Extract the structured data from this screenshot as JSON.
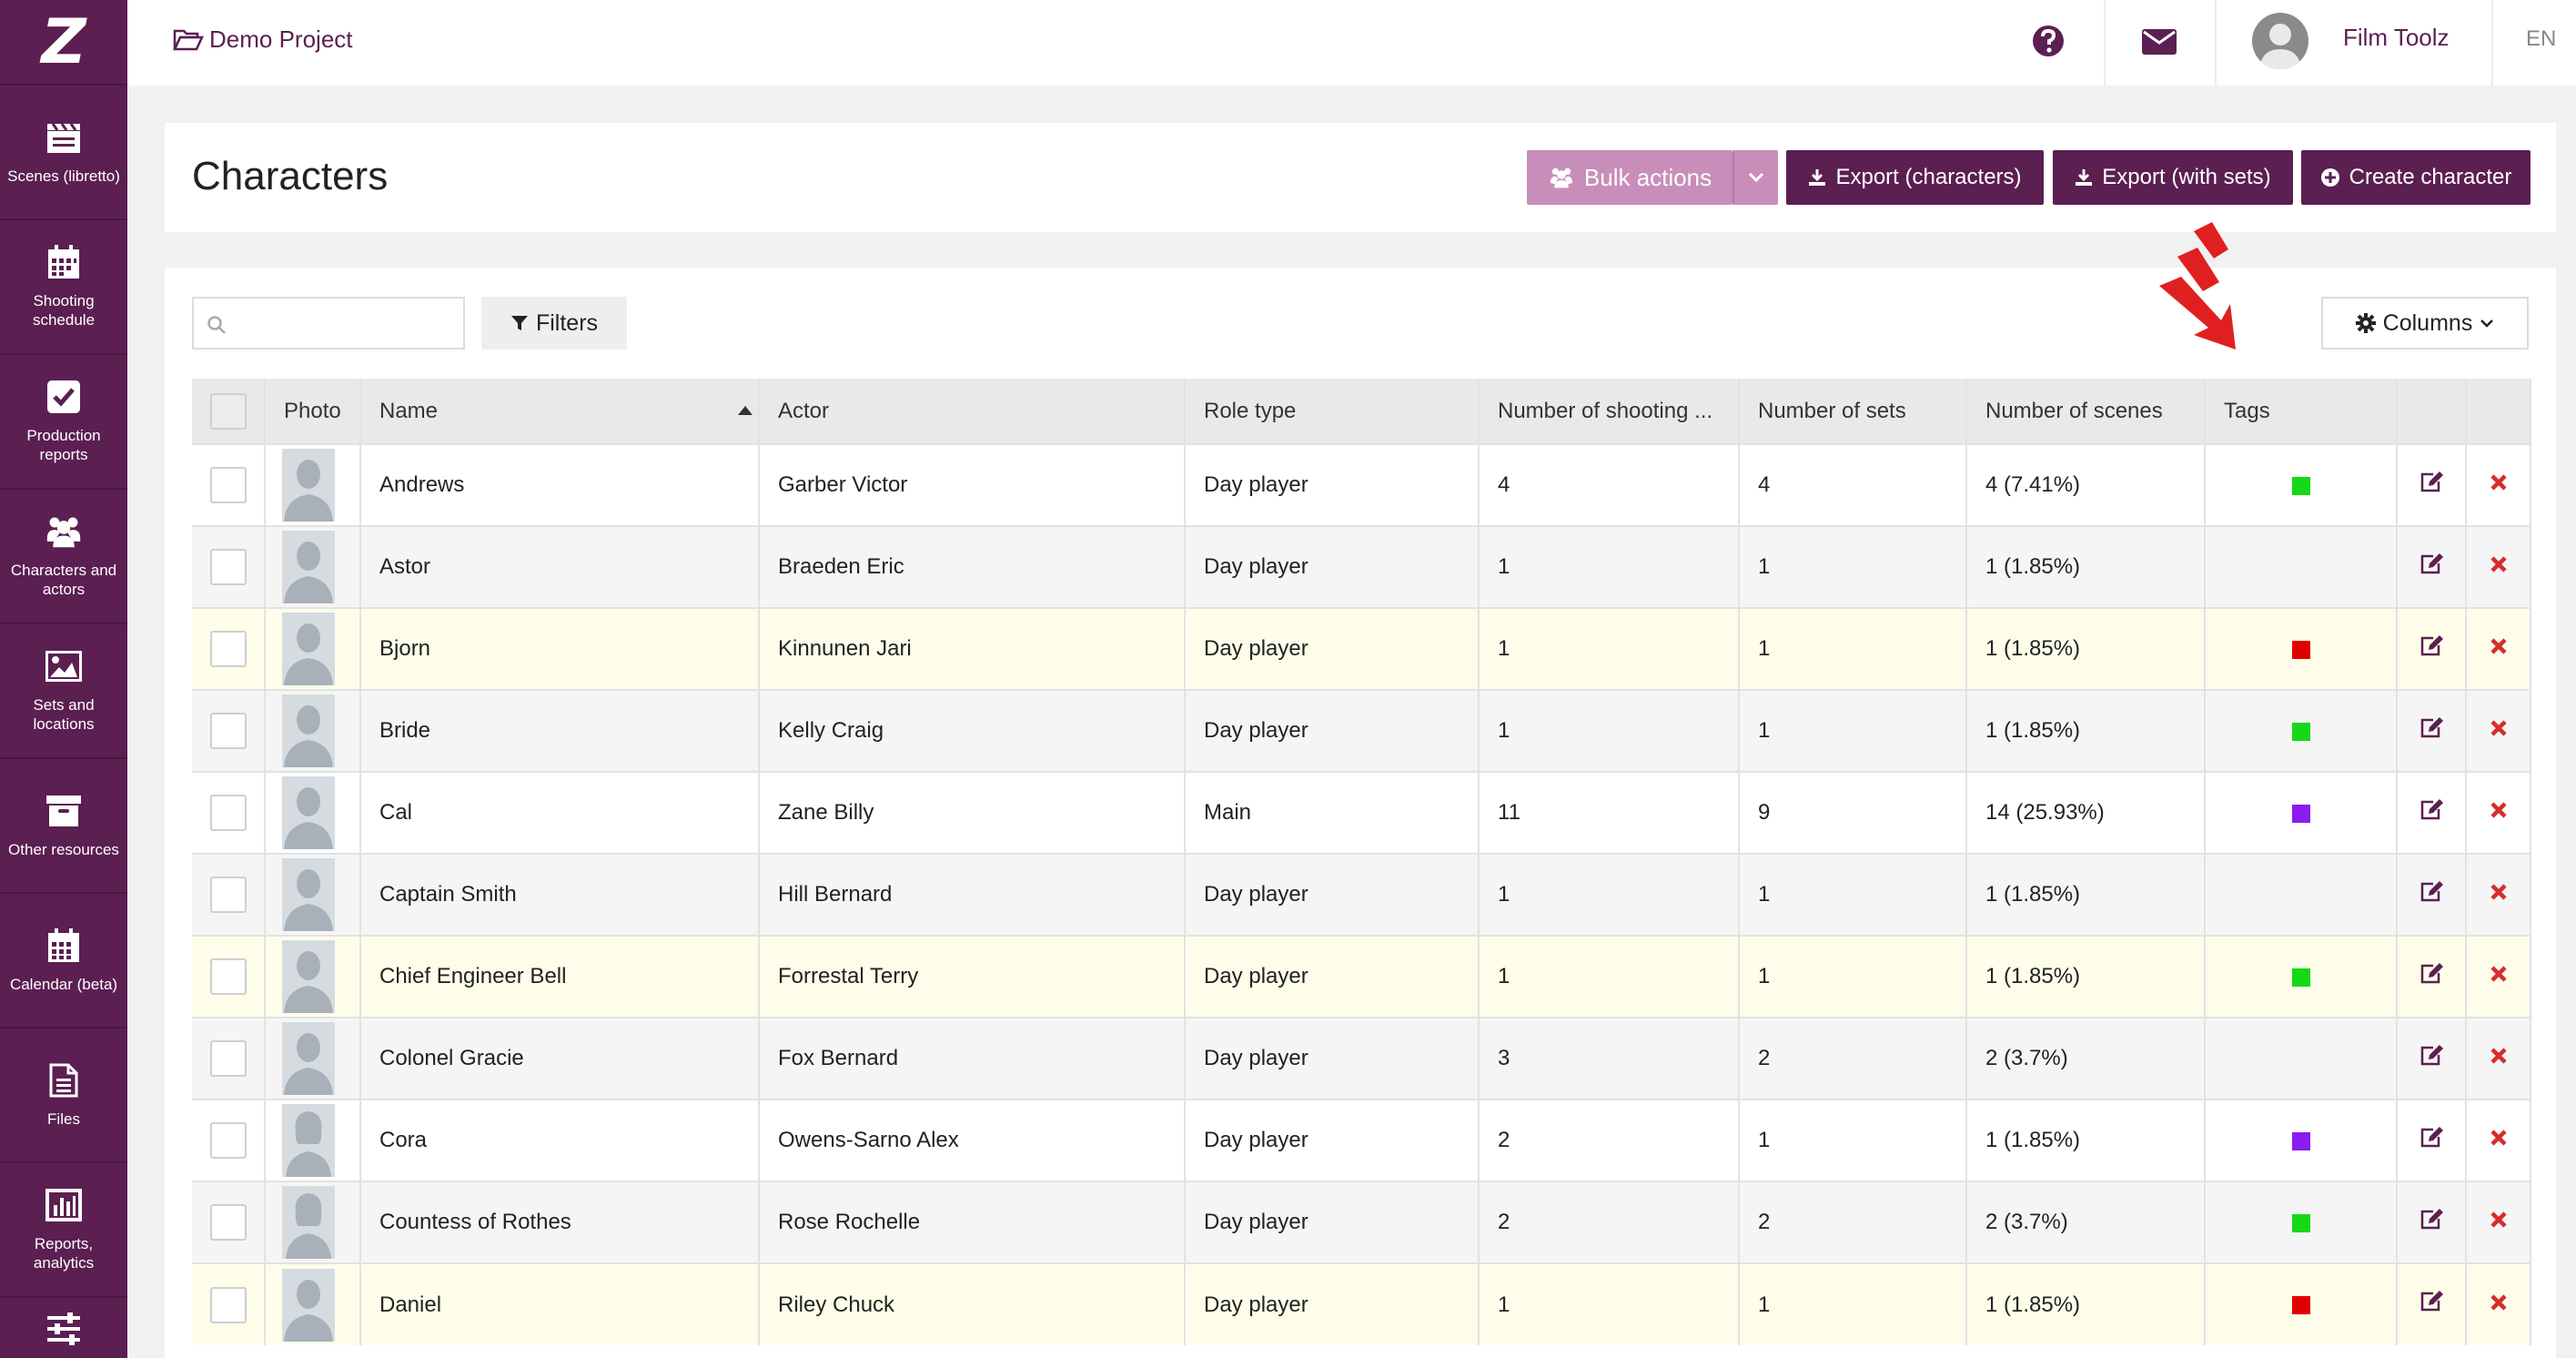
{
  "sidebar": {
    "logo": "Z",
    "items": [
      {
        "label": "Scenes (libretto)",
        "icon": "clapperboard-icon"
      },
      {
        "label": "Shooting schedule",
        "icon": "calendar-icon"
      },
      {
        "label": "Production reports",
        "icon": "checkbox-icon"
      },
      {
        "label": "Characters and actors",
        "icon": "users-icon"
      },
      {
        "label": "Sets and locations",
        "icon": "image-icon"
      },
      {
        "label": "Other resources",
        "icon": "archive-box-icon"
      },
      {
        "label": "Calendar (beta)",
        "icon": "calendar-grid-icon"
      },
      {
        "label": "Files",
        "icon": "file-icon"
      },
      {
        "label": "Reports, analytics",
        "icon": "bar-chart-icon"
      },
      {
        "label": "",
        "icon": "sliders-icon"
      }
    ]
  },
  "topbar": {
    "project": "Demo Project",
    "user_name": "Film Toolz",
    "language": "EN"
  },
  "header": {
    "title": "Characters",
    "bulk_actions": "Bulk actions",
    "export_characters": "Export (characters)",
    "export_with_sets": "Export (with sets)",
    "create_character": "Create character"
  },
  "toolbar": {
    "search_placeholder": "",
    "filters": "Filters",
    "columns": "Columns"
  },
  "table": {
    "headers": {
      "photo": "Photo",
      "name": "Name",
      "actor": "Actor",
      "role_type": "Role type",
      "shooting": "Number of shooting ...",
      "sets": "Number of sets",
      "scenes": "Number of scenes",
      "tags": "Tags"
    },
    "rows": [
      {
        "name": "Andrews",
        "actor": "Garber Victor",
        "role": "Day player",
        "shooting": "4",
        "sets": "4",
        "scenes": "4 (7.41%)",
        "tag_color": "#16d916",
        "style": "white"
      },
      {
        "name": "Astor",
        "actor": "Braeden Eric",
        "role": "Day player",
        "shooting": "1",
        "sets": "1",
        "scenes": "1 (1.85%)",
        "tag_color": "",
        "style": "grey"
      },
      {
        "name": "Bjorn",
        "actor": "Kinnunen Jari",
        "role": "Day player",
        "shooting": "1",
        "sets": "1",
        "scenes": "1 (1.85%)",
        "tag_color": "#e00000",
        "style": "yellow"
      },
      {
        "name": "Bride",
        "actor": "Kelly Craig",
        "role": "Day player",
        "shooting": "1",
        "sets": "1",
        "scenes": "1 (1.85%)",
        "tag_color": "#16d916",
        "style": "grey"
      },
      {
        "name": "Cal",
        "actor": "Zane Billy",
        "role": "Main",
        "shooting": "11",
        "sets": "9",
        "scenes": "14 (25.93%)",
        "tag_color": "#8a1cf0",
        "style": "white"
      },
      {
        "name": "Captain Smith",
        "actor": "Hill Bernard",
        "role": "Day player",
        "shooting": "1",
        "sets": "1",
        "scenes": "1 (1.85%)",
        "tag_color": "",
        "style": "grey"
      },
      {
        "name": "Chief Engineer Bell",
        "actor": "Forrestal Terry",
        "role": "Day player",
        "shooting": "1",
        "sets": "1",
        "scenes": "1 (1.85%)",
        "tag_color": "#16d916",
        "style": "yellow"
      },
      {
        "name": "Colonel Gracie",
        "actor": "Fox Bernard",
        "role": "Day player",
        "shooting": "3",
        "sets": "2",
        "scenes": "2 (3.7%)",
        "tag_color": "",
        "style": "grey"
      },
      {
        "name": "Cora",
        "actor": "Owens-Sarno Alex",
        "role": "Day player",
        "shooting": "2",
        "sets": "1",
        "scenes": "1 (1.85%)",
        "tag_color": "#8a1cf0",
        "style": "white"
      },
      {
        "name": "Countess of Rothes",
        "actor": "Rose Rochelle",
        "role": "Day player",
        "shooting": "2",
        "sets": "2",
        "scenes": "2 (3.7%)",
        "tag_color": "#16d916",
        "style": "grey"
      },
      {
        "name": "Daniel",
        "actor": "Riley Chuck",
        "role": "Day player",
        "shooting": "1",
        "sets": "1",
        "scenes": "1 (1.85%)",
        "tag_color": "#e00000",
        "style": "yellow"
      }
    ]
  },
  "colors": {
    "brand": "#5b1f52",
    "bulk": "#c88eb9",
    "delete": "#d62c2c"
  }
}
